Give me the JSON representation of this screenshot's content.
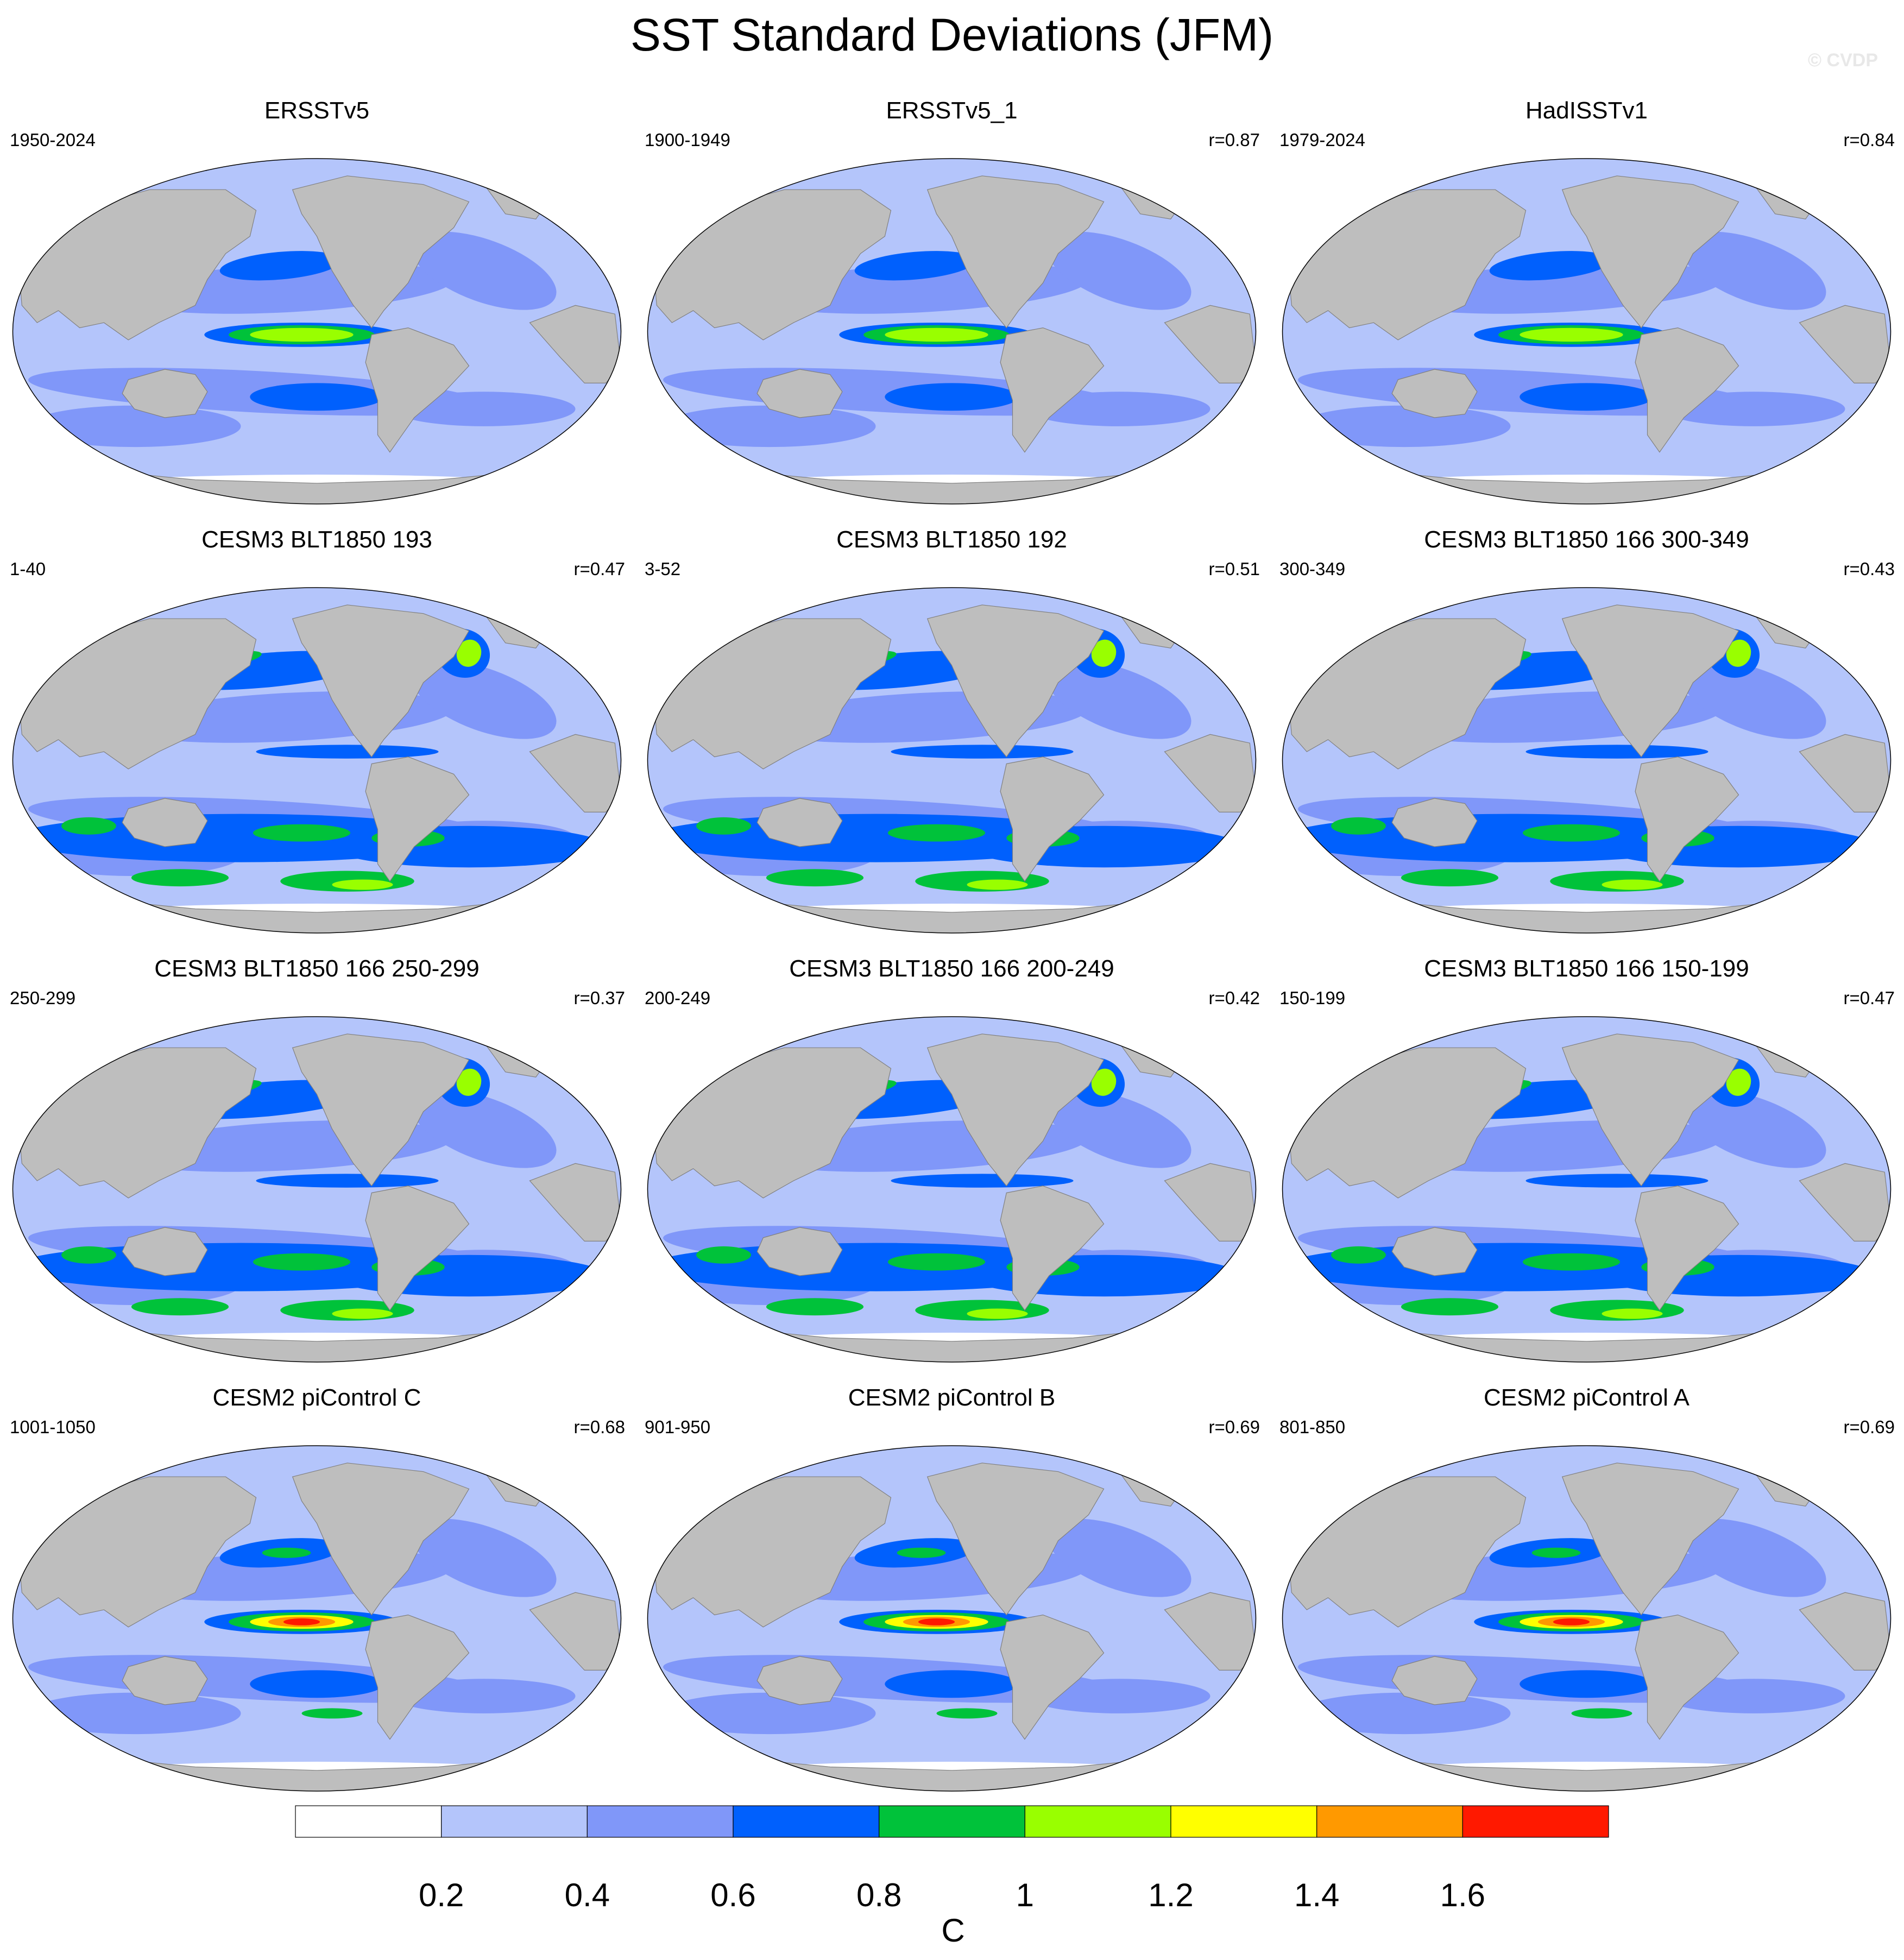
{
  "title": "SST Standard Deviations (JFM)",
  "watermark": "© CVDP",
  "panels": [
    {
      "title": "ERSSTv5",
      "period": "1950-2024",
      "r": "",
      "style": "obs"
    },
    {
      "title": "ERSSTv5_1",
      "period": "1900-1949",
      "r": "r=0.87",
      "style": "obs"
    },
    {
      "title": "HadISSTv1",
      "period": "1979-2024",
      "r": "r=0.84",
      "style": "obs"
    },
    {
      "title": "CESM3 BLT1850 193",
      "period": "1-40",
      "r": "r=0.47",
      "style": "cesm3"
    },
    {
      "title": "CESM3 BLT1850 192",
      "period": "3-52",
      "r": "r=0.51",
      "style": "cesm3"
    },
    {
      "title": "CESM3 BLT1850 166 300-349",
      "period": "300-349",
      "r": "r=0.43",
      "style": "cesm3"
    },
    {
      "title": "CESM3 BLT1850 166 250-299",
      "period": "250-299",
      "r": "r=0.37",
      "style": "cesm3"
    },
    {
      "title": "CESM3 BLT1850 166 200-249",
      "period": "200-249",
      "r": "r=0.42",
      "style": "cesm3"
    },
    {
      "title": "CESM3 BLT1850 166 150-199",
      "period": "150-199",
      "r": "r=0.47",
      "style": "cesm3"
    },
    {
      "title": "CESM2 piControl C",
      "period": "1001-1050",
      "r": "r=0.68",
      "style": "cesm2"
    },
    {
      "title": "CESM2 piControl B",
      "period": "901-950",
      "r": "r=0.69",
      "style": "cesm2"
    },
    {
      "title": "CESM2 piControl A",
      "period": "801-850",
      "r": "r=0.69",
      "style": "cesm2"
    }
  ],
  "colorbar": {
    "unit": "C",
    "ticks": [
      "0.2",
      "0.4",
      "0.6",
      "0.8",
      "1",
      "1.2",
      "1.4",
      "1.6"
    ],
    "colors": [
      "#ffffff",
      "#b4c5fb",
      "#8097f9",
      "#0060fd",
      "#00c23a",
      "#99ff00",
      "#ffff00",
      "#ff9900",
      "#ff1900"
    ]
  },
  "land_color": "#bebebe"
}
